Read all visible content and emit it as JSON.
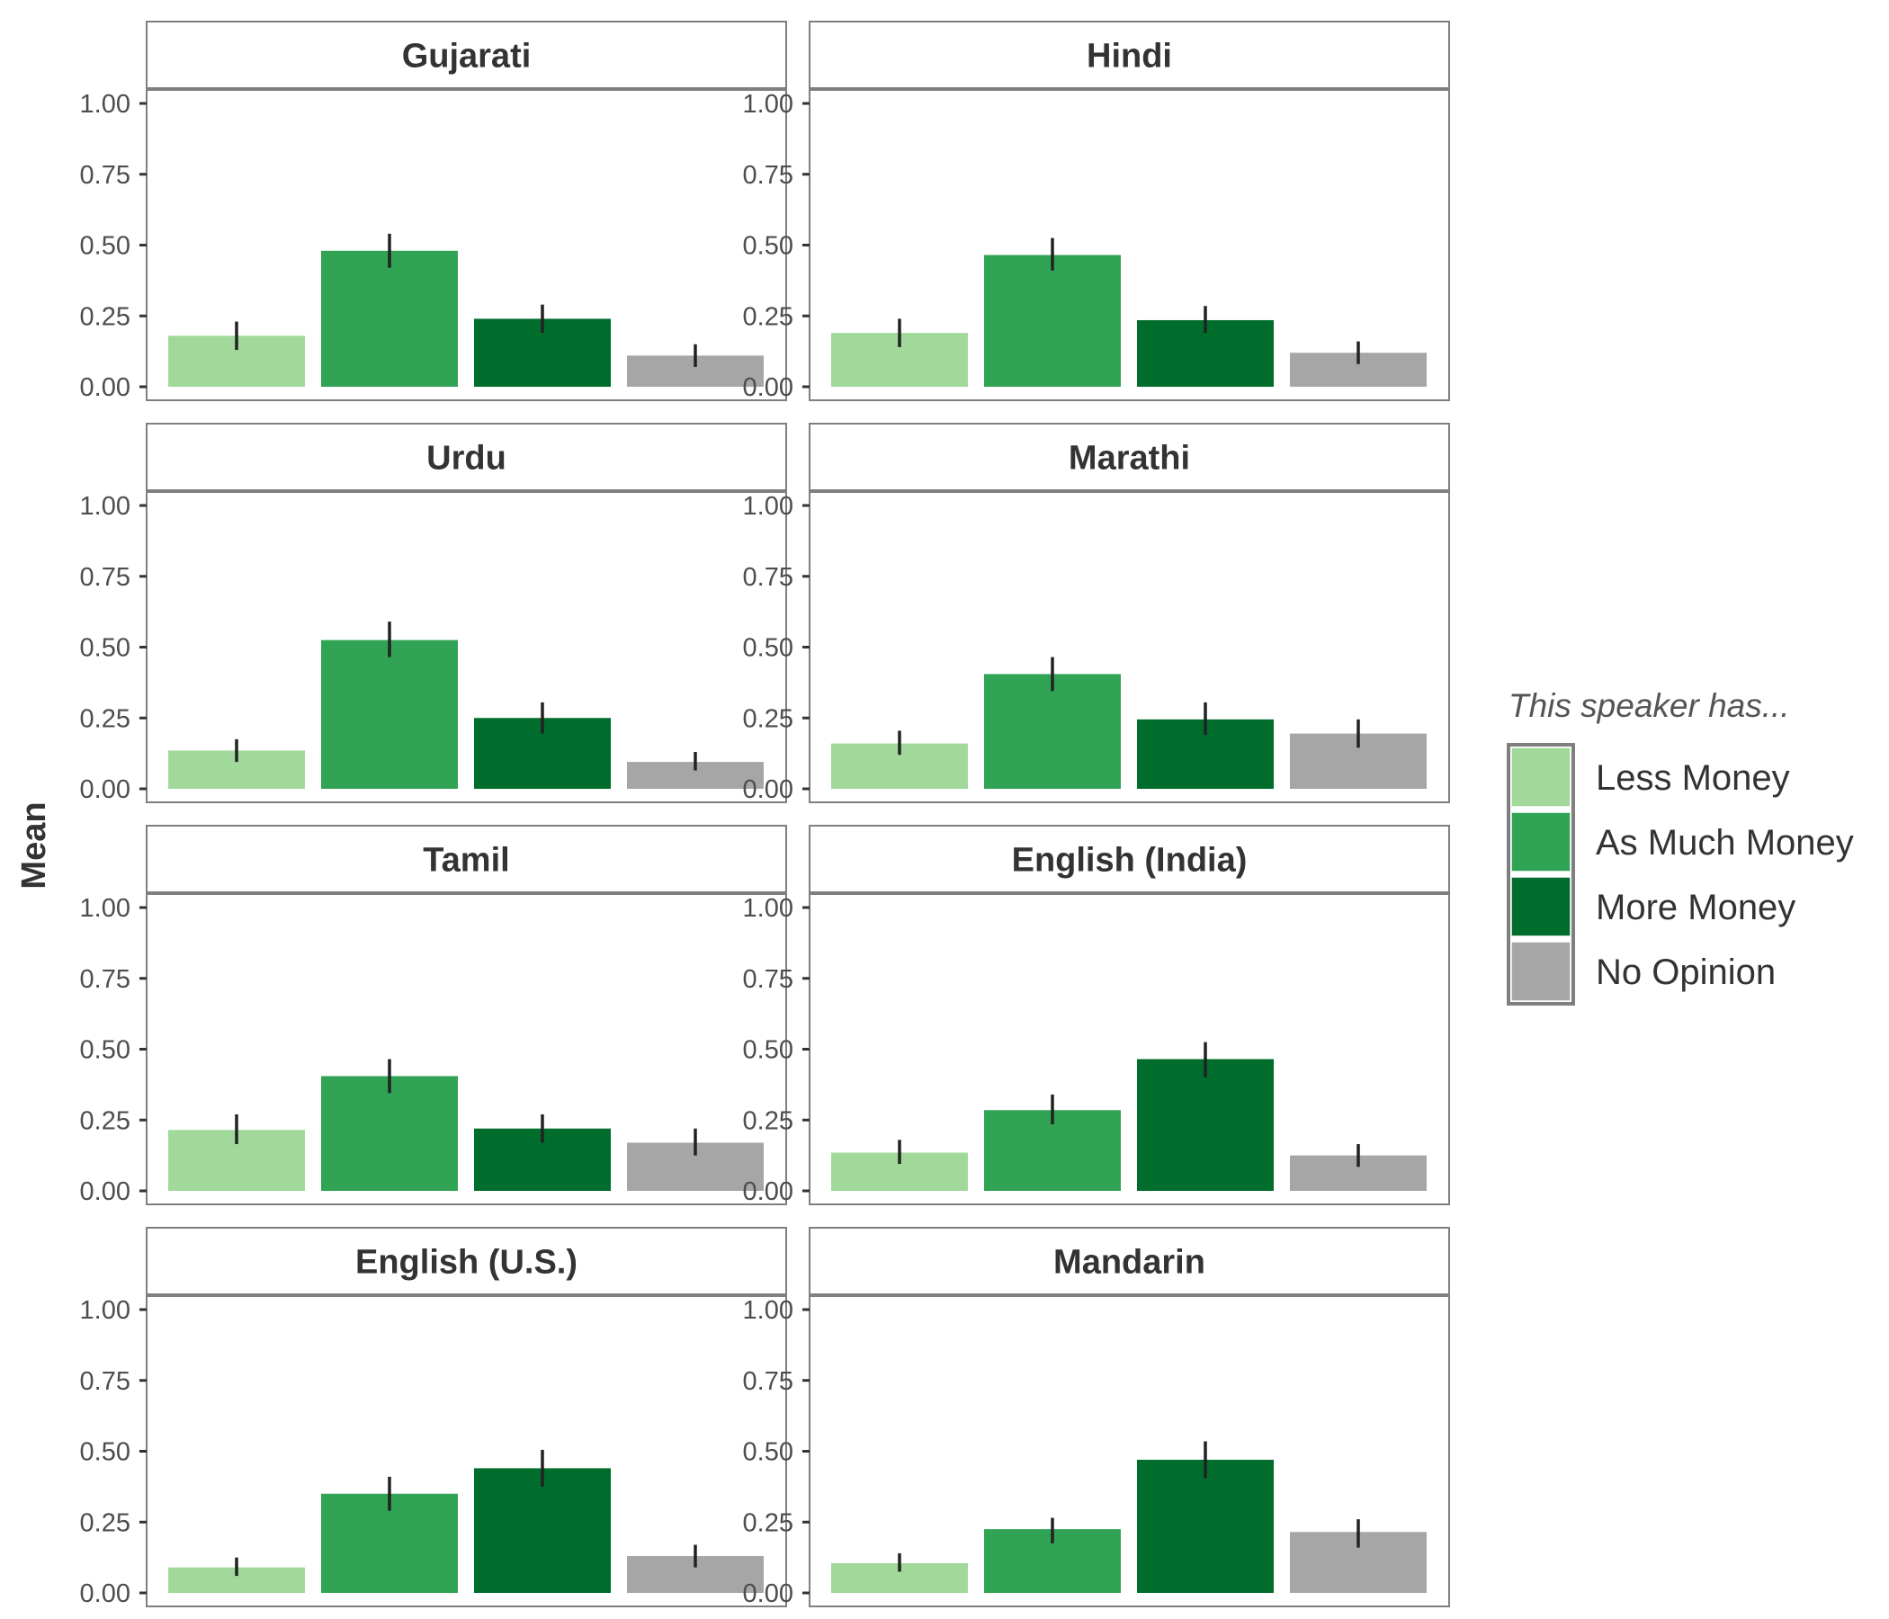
{
  "chart_data": {
    "type": "bar",
    "ylabel": "Mean",
    "xlabel": "",
    "ylim": [
      0,
      1.0
    ],
    "yticks": [
      "0.00",
      "0.25",
      "0.50",
      "0.75",
      "1.00"
    ],
    "ytick_values": [
      0,
      0.25,
      0.5,
      0.75,
      1.0
    ],
    "legend": {
      "title": "This speaker has...",
      "placement": "right",
      "entries": [
        {
          "label": "Less Money",
          "color": "#a1d99b"
        },
        {
          "label": "As Much Money",
          "color": "#31a354"
        },
        {
          "label": "More Money",
          "color": "#006d2c"
        },
        {
          "label": "No Opinion",
          "color": "#a6a6a6"
        }
      ]
    },
    "grid": false,
    "error_bars": true,
    "categories": [
      "Less Money",
      "As Much Money",
      "More Money",
      "No Opinion"
    ],
    "panels": [
      {
        "title": "Gujarati",
        "values": [
          0.18,
          0.48,
          0.24,
          0.11
        ],
        "errors": [
          [
            0.13,
            0.23
          ],
          [
            0.42,
            0.54
          ],
          [
            0.19,
            0.29
          ],
          [
            0.07,
            0.15
          ]
        ]
      },
      {
        "title": "Hindi",
        "values": [
          0.19,
          0.465,
          0.235,
          0.12
        ],
        "errors": [
          [
            0.14,
            0.24
          ],
          [
            0.41,
            0.525
          ],
          [
            0.19,
            0.285
          ],
          [
            0.08,
            0.16
          ]
        ]
      },
      {
        "title": "Urdu",
        "values": [
          0.135,
          0.525,
          0.25,
          0.095
        ],
        "errors": [
          [
            0.095,
            0.175
          ],
          [
            0.465,
            0.59
          ],
          [
            0.195,
            0.305
          ],
          [
            0.065,
            0.13
          ]
        ]
      },
      {
        "title": "Marathi",
        "values": [
          0.16,
          0.405,
          0.245,
          0.195
        ],
        "errors": [
          [
            0.12,
            0.205
          ],
          [
            0.345,
            0.465
          ],
          [
            0.19,
            0.305
          ],
          [
            0.145,
            0.245
          ]
        ]
      },
      {
        "title": "Tamil",
        "values": [
          0.215,
          0.405,
          0.22,
          0.17
        ],
        "errors": [
          [
            0.165,
            0.27
          ],
          [
            0.345,
            0.465
          ],
          [
            0.17,
            0.27
          ],
          [
            0.125,
            0.22
          ]
        ]
      },
      {
        "title": "English (India)",
        "values": [
          0.135,
          0.285,
          0.465,
          0.125
        ],
        "errors": [
          [
            0.095,
            0.18
          ],
          [
            0.235,
            0.34
          ],
          [
            0.4,
            0.525
          ],
          [
            0.085,
            0.165
          ]
        ]
      },
      {
        "title": "English (U.S.)",
        "values": [
          0.09,
          0.35,
          0.44,
          0.13
        ],
        "errors": [
          [
            0.06,
            0.125
          ],
          [
            0.29,
            0.41
          ],
          [
            0.375,
            0.505
          ],
          [
            0.09,
            0.17
          ]
        ]
      },
      {
        "title": "Mandarin",
        "values": [
          0.105,
          0.225,
          0.47,
          0.215
        ],
        "errors": [
          [
            0.075,
            0.14
          ],
          [
            0.175,
            0.265
          ],
          [
            0.405,
            0.535
          ],
          [
            0.16,
            0.26
          ]
        ]
      }
    ]
  }
}
